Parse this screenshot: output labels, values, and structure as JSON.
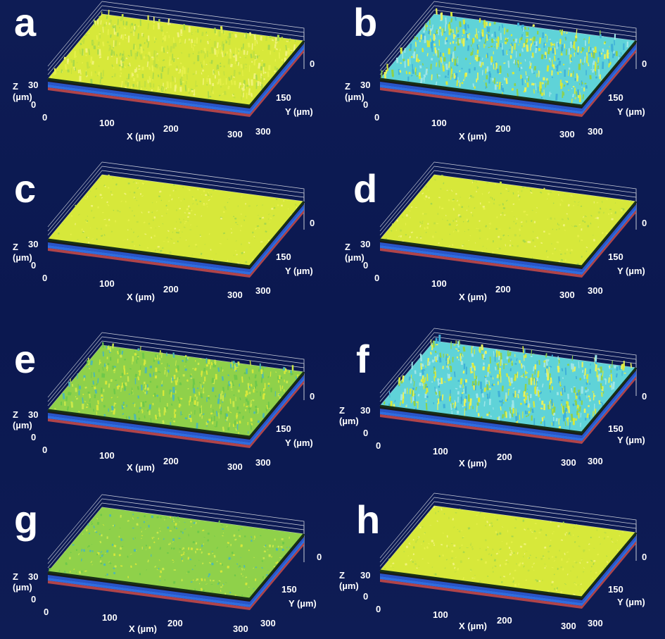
{
  "panels": [
    {
      "letter": "a",
      "roughness": 0.9,
      "tone": "yellow"
    },
    {
      "letter": "b",
      "roughness": 1.0,
      "tone": "cyan-mixed"
    },
    {
      "letter": "c",
      "roughness": 0.25,
      "tone": "yellow"
    },
    {
      "letter": "d",
      "roughness": 0.3,
      "tone": "yellow"
    },
    {
      "letter": "e",
      "roughness": 0.8,
      "tone": "green-mixed"
    },
    {
      "letter": "f",
      "roughness": 1.0,
      "tone": "cyan-mixed"
    },
    {
      "letter": "g",
      "roughness": 0.35,
      "tone": "green-mixed"
    },
    {
      "letter": "h",
      "roughness": 0.3,
      "tone": "yellow"
    }
  ],
  "axes": {
    "z_label_line1": "Z",
    "z_label_line2": "(µm)",
    "z_ticks": [
      "30",
      "0"
    ],
    "x_label": "X (µm)",
    "x_ticks": [
      "0",
      "100",
      "200",
      "300"
    ],
    "y_label": "Y (µm)",
    "y_ticks": [
      "0",
      "150",
      "300"
    ]
  },
  "colors": {
    "background": "#0d1a4f",
    "surface_yellow": "#d7e83a",
    "surface_green": "#8fd14a",
    "surface_cyan": "#5fd3d8",
    "substrate_blue": "#2a55c8",
    "substrate_red": "#b0444a",
    "grid": "#c8ccd8"
  }
}
